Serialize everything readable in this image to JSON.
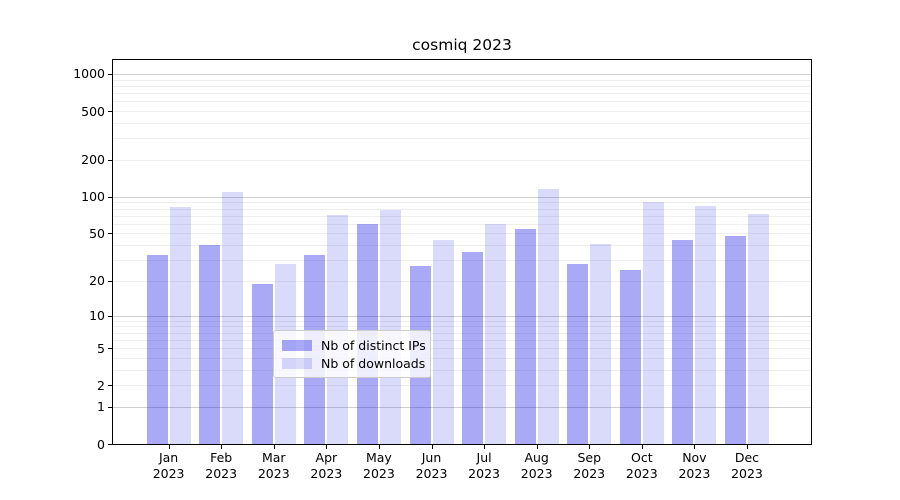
{
  "title": "cosmiq 2023",
  "legend": {
    "items": [
      {
        "label": "Nb of distinct IPs",
        "color": "rgba(10,10,225,0.35)"
      },
      {
        "label": "Nb of downloads",
        "color": "rgba(10,10,225,0.15)"
      }
    ]
  },
  "colors": {
    "distinct_ips_bar": "rgba(10,10,225,0.35)",
    "downloads_bar": "rgba(10,10,225,0.15)",
    "major_grid": "#d0d0d0",
    "minor_grid": "#eeeeee",
    "spine": "#000000"
  },
  "chart_data": {
    "type": "bar",
    "title": "cosmiq 2023",
    "categories": [
      "Jan 2023",
      "Feb 2023",
      "Mar 2023",
      "Apr 2023",
      "May 2023",
      "Jun 2023",
      "Jul 2023",
      "Aug 2023",
      "Sep 2023",
      "Oct 2023",
      "Nov 2023",
      "Dec 2023"
    ],
    "series": [
      {
        "name": "Nb of distinct IPs",
        "values": [
          33,
          40,
          19,
          33,
          60,
          27,
          35,
          54,
          28,
          25,
          44,
          48
        ]
      },
      {
        "name": "Nb of downloads",
        "values": [
          83,
          110,
          28,
          71,
          78,
          44,
          60,
          116,
          41,
          90,
          84,
          72
        ]
      }
    ],
    "xlabel": "",
    "ylabel": "",
    "yscale": "log1p",
    "yticks": [
      0,
      1,
      2,
      5,
      10,
      20,
      50,
      100,
      200,
      500,
      1000
    ],
    "ylim": [
      0,
      1300
    ],
    "grid": "horizontal major+minor",
    "legend_position": "lower center"
  }
}
